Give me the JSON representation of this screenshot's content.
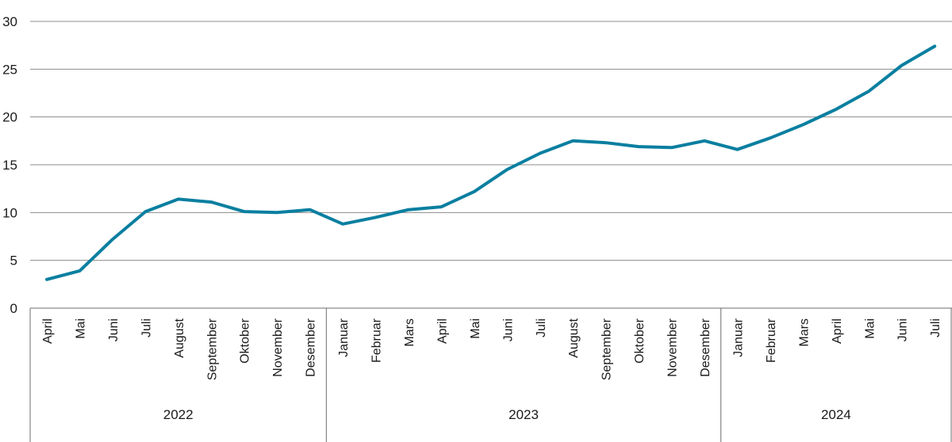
{
  "chart_data": {
    "type": "line",
    "title": "",
    "xlabel": "",
    "ylabel": "",
    "ylim": [
      0,
      30
    ],
    "yticks": [
      0,
      5,
      10,
      15,
      20,
      25,
      30
    ],
    "grid": "horizontal",
    "categories": [
      "April",
      "Mai",
      "Juni",
      "Juli",
      "August",
      "September",
      "Oktober",
      "November",
      "Desember",
      "Januar",
      "Februar",
      "Mars",
      "April",
      "Mai",
      "Juni",
      "Juli",
      "August",
      "September",
      "Oktober",
      "November",
      "Desember",
      "Januar",
      "Februar",
      "Mars",
      "April",
      "Mai",
      "Juni",
      "Juli"
    ],
    "groups": [
      {
        "label": "2022",
        "count": 9
      },
      {
        "label": "2023",
        "count": 12
      },
      {
        "label": "2024",
        "count": 7
      }
    ],
    "series": [
      {
        "color": "#0a7fa0",
        "values": [
          3.0,
          3.9,
          7.2,
          10.1,
          11.4,
          11.1,
          10.1,
          10.0,
          10.3,
          8.8,
          9.5,
          10.3,
          10.6,
          12.2,
          14.5,
          16.2,
          17.5,
          17.3,
          16.9,
          16.8,
          17.5,
          16.6,
          17.8,
          19.2,
          20.8,
          22.7,
          25.4,
          27.4
        ]
      }
    ]
  }
}
